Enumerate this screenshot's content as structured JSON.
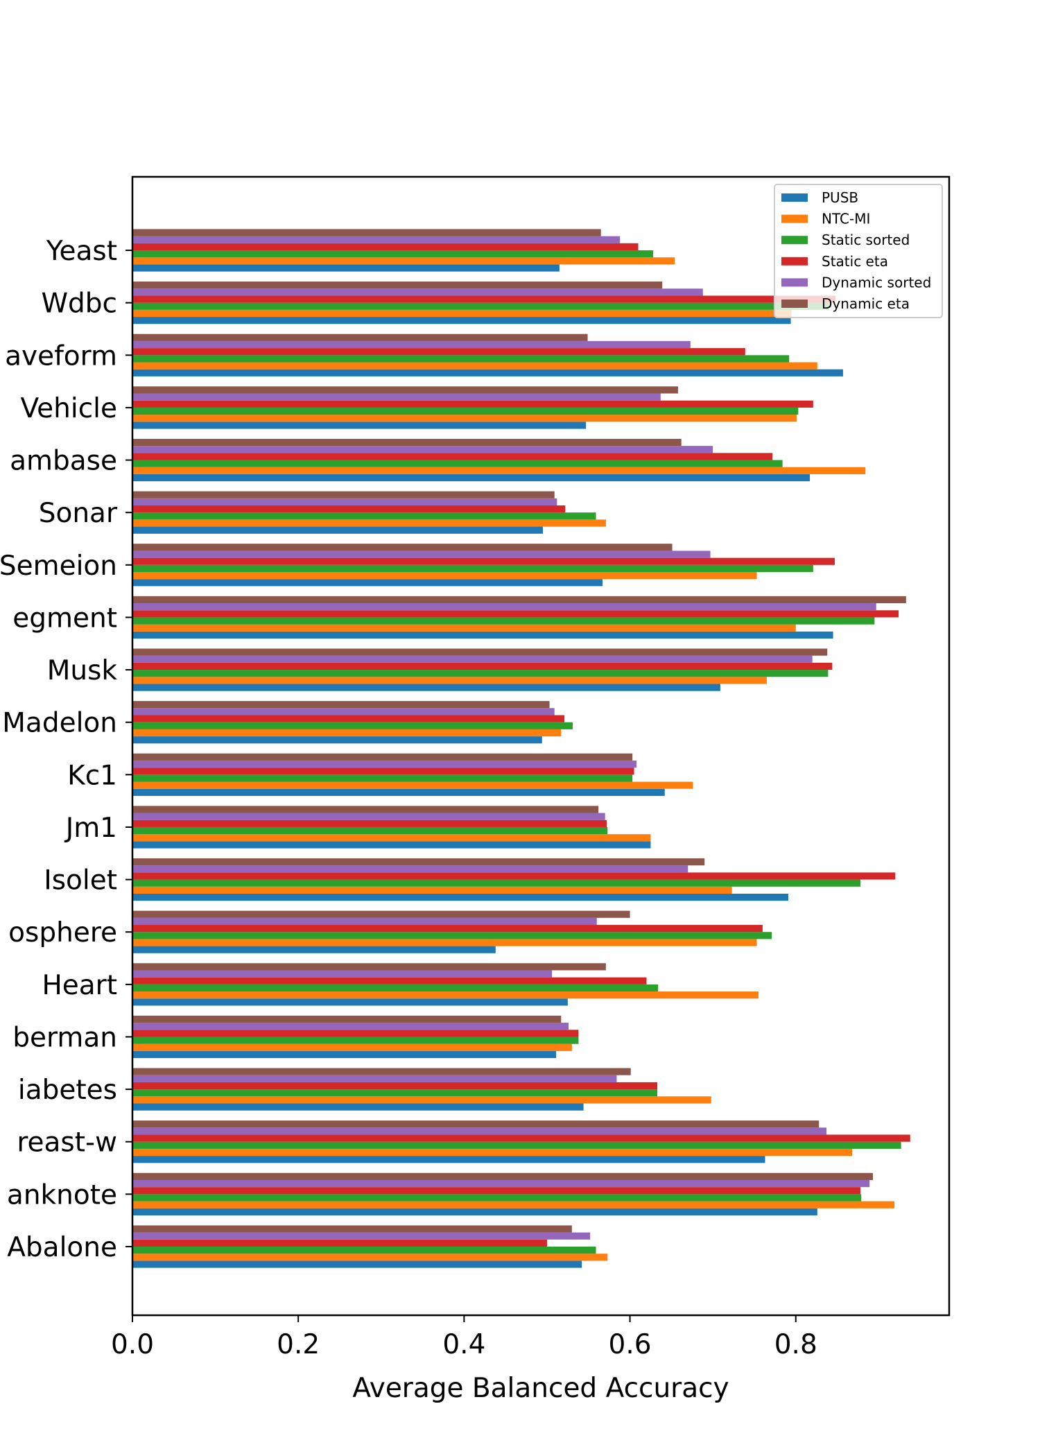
{
  "chart_data": {
    "type": "bar",
    "orientation": "horizontal",
    "xlabel": "Average Balanced Accuracy",
    "ylabel": "",
    "xlim": [
      0,
      0.985
    ],
    "xticks": [
      "0.0",
      "0.2",
      "0.4",
      "0.6",
      "0.8"
    ],
    "legend_position": "top-right",
    "categories": [
      "Abalone",
      "Banknote",
      "Breast-w",
      "Diabetes",
      "Haberman",
      "Heart",
      "Ionosphere",
      "Isolet",
      "Jm1",
      "Kc1",
      "Madelon",
      "Musk",
      "Segment",
      "Semeion",
      "Sonar",
      "Spambase",
      "Vehicle",
      "Waveform",
      "Wdbc",
      "Yeast"
    ],
    "tick_labels": [
      "Abalone",
      "anknote",
      "reast-w",
      "iabetes",
      "berman",
      "Heart",
      "osphere",
      "Isolet",
      "Jm1",
      "Kc1",
      "Madelon",
      "Musk",
      "egment",
      "Semeion",
      "Sonar",
      "ambase",
      "Vehicle",
      "aveform",
      "Wdbc",
      "Yeast"
    ],
    "series": [
      {
        "name": "PUSB",
        "color": "#1f77b4",
        "values": [
          0.542,
          0.826,
          0.763,
          0.544,
          0.511,
          0.525,
          0.438,
          0.791,
          0.625,
          0.642,
          0.494,
          0.709,
          0.845,
          0.567,
          0.495,
          0.817,
          0.547,
          0.857,
          0.794,
          0.515
        ]
      },
      {
        "name": "NTC-MI",
        "color": "#ff7f0e",
        "values": [
          0.573,
          0.919,
          0.868,
          0.698,
          0.53,
          0.755,
          0.753,
          0.723,
          0.625,
          0.676,
          0.517,
          0.765,
          0.8,
          0.753,
          0.571,
          0.884,
          0.801,
          0.826,
          0.795,
          0.654
        ]
      },
      {
        "name": "Static sorted",
        "color": "#2ca02c",
        "values": [
          0.559,
          0.879,
          0.927,
          0.633,
          0.538,
          0.634,
          0.771,
          0.878,
          0.573,
          0.603,
          0.531,
          0.839,
          0.895,
          0.821,
          0.559,
          0.784,
          0.803,
          0.792,
          0.84,
          0.628
        ]
      },
      {
        "name": "Static eta",
        "color": "#d62728",
        "values": [
          0.5,
          0.878,
          0.938,
          0.633,
          0.538,
          0.62,
          0.76,
          0.92,
          0.572,
          0.605,
          0.521,
          0.844,
          0.924,
          0.847,
          0.522,
          0.772,
          0.821,
          0.739,
          0.848,
          0.61
        ]
      },
      {
        "name": "Dynamic sorted",
        "color": "#9467bd",
        "values": [
          0.552,
          0.889,
          0.837,
          0.584,
          0.526,
          0.506,
          0.56,
          0.67,
          0.57,
          0.608,
          0.509,
          0.82,
          0.897,
          0.697,
          0.512,
          0.7,
          0.637,
          0.673,
          0.688,
          0.588
        ]
      },
      {
        "name": "Dynamic eta",
        "color": "#8c564b",
        "values": [
          0.53,
          0.893,
          0.828,
          0.601,
          0.517,
          0.571,
          0.6,
          0.69,
          0.562,
          0.603,
          0.503,
          0.838,
          0.933,
          0.651,
          0.509,
          0.662,
          0.658,
          0.549,
          0.639,
          0.565
        ]
      }
    ]
  }
}
